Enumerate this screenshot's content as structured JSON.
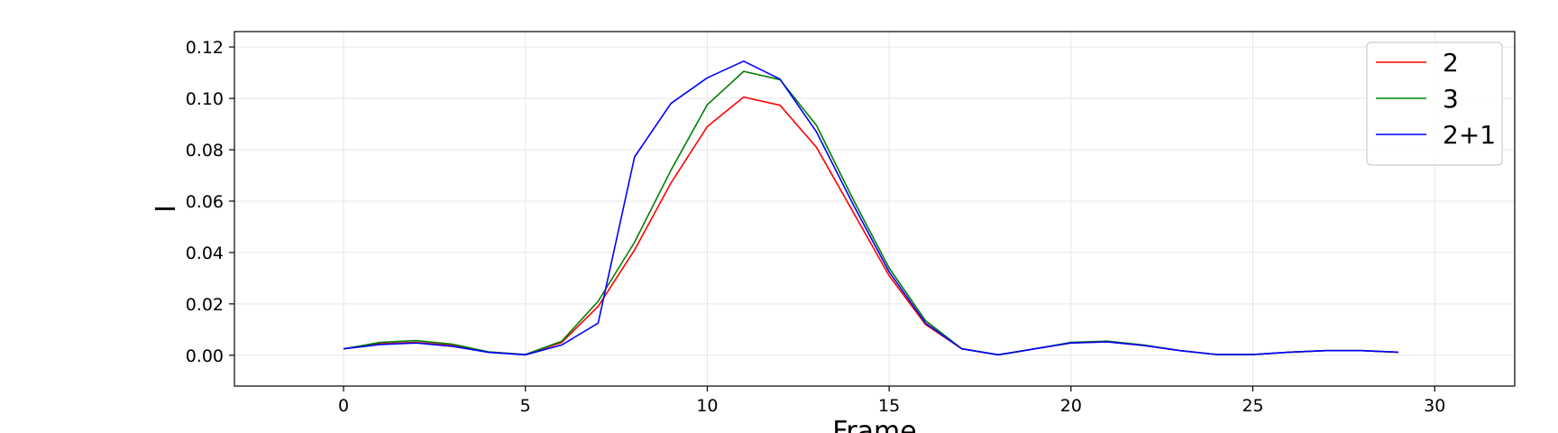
{
  "chart_data": {
    "type": "line",
    "title": "",
    "xlabel": "Frame",
    "ylabel": "I",
    "xlim": [
      -3,
      32.2
    ],
    "ylim": [
      -0.012,
      0.126
    ],
    "xticks": [
      0,
      5,
      10,
      15,
      20,
      25,
      30
    ],
    "yticks": [
      0.0,
      0.02,
      0.04,
      0.06,
      0.08,
      0.1,
      0.12
    ],
    "ytick_labels": [
      "0.00",
      "0.02",
      "0.04",
      "0.06",
      "0.08",
      "0.10",
      "0.12"
    ],
    "grid": true,
    "legend_position": "top-right",
    "x": [
      0,
      1,
      2,
      3,
      4,
      5,
      6,
      7,
      8,
      9,
      10,
      11,
      12,
      13,
      14,
      15,
      16,
      17,
      18,
      19,
      20,
      21,
      22,
      23,
      24,
      25,
      26,
      27,
      28,
      29
    ],
    "series": [
      {
        "name": "2",
        "color": "#ff0000",
        "values": [
          0.0025,
          0.0045,
          0.005,
          0.0038,
          0.0012,
          0.0003,
          0.005,
          0.019,
          0.041,
          0.067,
          0.089,
          0.1005,
          0.0973,
          0.081,
          0.056,
          0.031,
          0.012,
          0.0025,
          0.0002,
          0.0025,
          0.0048,
          0.0052,
          0.0038,
          0.0018,
          0.0003,
          0.0003,
          0.0012,
          0.0018,
          0.0018,
          0.0012
        ]
      },
      {
        "name": "3",
        "color": "#008000",
        "values": [
          0.0025,
          0.005,
          0.0057,
          0.0043,
          0.0013,
          0.0003,
          0.0055,
          0.021,
          0.044,
          0.072,
          0.0975,
          0.1105,
          0.1073,
          0.0895,
          0.061,
          0.034,
          0.0135,
          0.0025,
          0.0002,
          0.0025,
          0.005,
          0.0055,
          0.004,
          0.0018,
          0.0003,
          0.0003,
          0.0012,
          0.0018,
          0.0018,
          0.0012
        ]
      },
      {
        "name": "2+1",
        "color": "#0000ff",
        "values": [
          0.0025,
          0.0042,
          0.0048,
          0.0035,
          0.0011,
          0.0002,
          0.004,
          0.0125,
          0.0772,
          0.098,
          0.108,
          0.1145,
          0.1075,
          0.087,
          0.059,
          0.0325,
          0.0125,
          0.0025,
          0.0002,
          0.0025,
          0.0048,
          0.0052,
          0.0038,
          0.0018,
          0.0003,
          0.0003,
          0.0012,
          0.0018,
          0.0018,
          0.0012
        ]
      }
    ]
  }
}
